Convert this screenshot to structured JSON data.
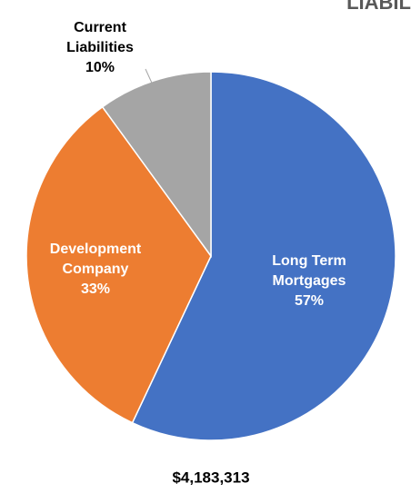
{
  "chart_data": {
    "type": "pie",
    "title": "LIABIL",
    "categories": [
      "Long Term Mortgages",
      "Development Company",
      "Current Liabilities"
    ],
    "values": [
      57,
      33,
      10
    ],
    "value_labels": [
      "57%",
      "33%",
      "10%"
    ],
    "colors": [
      "#4472c4",
      "#ed7d31",
      "#a5a5a5"
    ],
    "annotation": "$4,183,313"
  }
}
